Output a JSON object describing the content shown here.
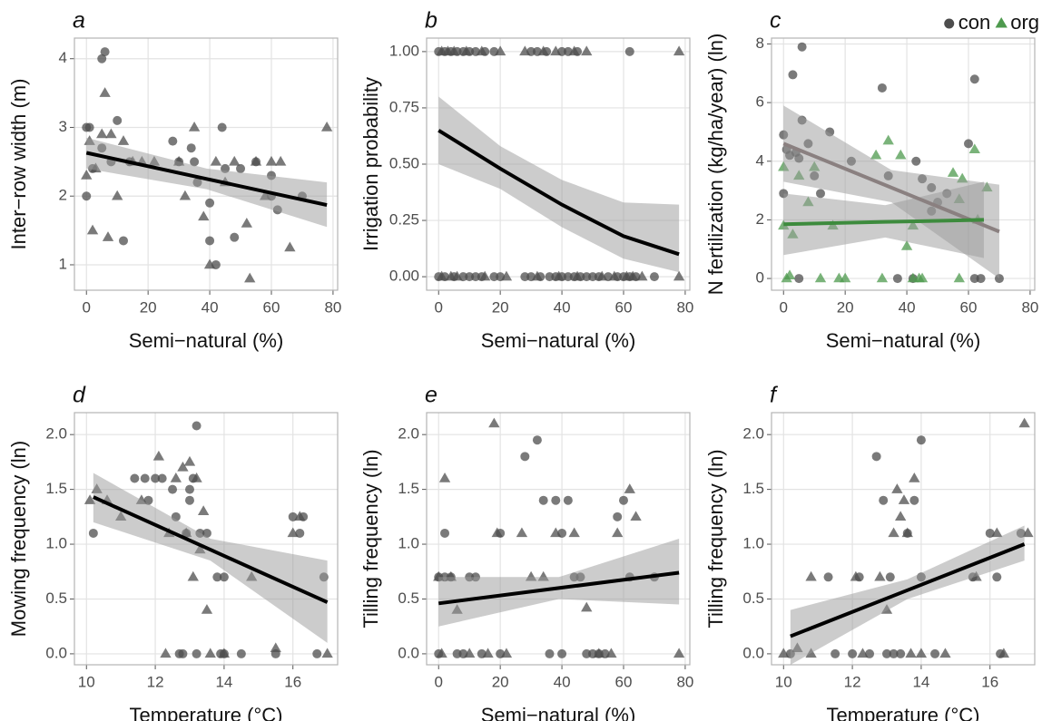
{
  "chart_data": [
    {
      "type": "scatter",
      "label": "a",
      "xlabel": "Semi−natural (%)",
      "ylabel": "Inter−row width (m)",
      "xlim": [
        -3.9,
        81.5
      ],
      "ylim": [
        0.63,
        4.3
      ],
      "xticks": [
        0,
        20,
        40,
        60,
        80
      ],
      "yticks": [
        1,
        2,
        3,
        4
      ],
      "grid": true,
      "series": [
        {
          "marker": "circle",
          "color": "#4d4d4d",
          "x": [
            0,
            1,
            2,
            5,
            6,
            5,
            8,
            10,
            12,
            14,
            28,
            30,
            34,
            35,
            36,
            40,
            40,
            42,
            44,
            45,
            48,
            50,
            55,
            60,
            62,
            70,
            60,
            0
          ],
          "y": [
            3,
            3,
            2.4,
            4,
            4.1,
            2.7,
            2.5,
            3.1,
            1.35,
            2.5,
            2.8,
            2.5,
            2.7,
            2.5,
            2.2,
            1.9,
            1.35,
            1.0,
            3,
            2.4,
            1.4,
            2.4,
            2.5,
            2.0,
            1.8,
            2.0,
            2.3,
            2.0
          ]
        },
        {
          "marker": "triangle",
          "color": "#4d4d4d",
          "x": [
            0,
            1,
            2,
            3,
            5,
            6,
            7,
            8,
            10,
            12,
            15,
            18,
            22,
            30,
            32,
            35,
            38,
            40,
            42,
            45,
            48,
            52,
            53,
            55,
            58,
            60,
            63,
            66,
            78
          ],
          "y": [
            2.3,
            2.8,
            1.5,
            2.4,
            2.9,
            3.5,
            1.4,
            2.9,
            2.0,
            2.8,
            2.5,
            2.5,
            2.5,
            2.5,
            2.0,
            3.0,
            1.7,
            1.0,
            2.5,
            2.2,
            2.5,
            1.6,
            0.8,
            2.5,
            2.0,
            2.5,
            2.5,
            1.25,
            3.0
          ]
        }
      ],
      "fits": [
        {
          "color": "#000000",
          "x": [
            0,
            39,
            78
          ],
          "y": [
            2.63,
            2.25,
            1.87
          ],
          "lower": [
            2.4,
            2.1,
            1.55
          ],
          "upper": [
            2.85,
            2.4,
            2.2
          ]
        }
      ]
    },
    {
      "type": "scatter",
      "label": "b",
      "xlabel": "Semi−natural (%)",
      "ylabel": "Irrigation probability",
      "xlim": [
        -3.9,
        81.5
      ],
      "ylim": [
        -0.06,
        1.06
      ],
      "xticks": [
        0,
        20,
        40,
        60,
        80
      ],
      "yticks": [
        {
          "value": 0,
          "label": "0.00"
        },
        {
          "value": 0.25,
          "label": "0.25"
        },
        {
          "value": 0.5,
          "label": "0.50"
        },
        {
          "value": 0.75,
          "label": "0.75"
        },
        {
          "value": 1,
          "label": "1.00"
        }
      ],
      "grid": true,
      "series": [
        {
          "marker": "circle",
          "color": "#4d4d4d",
          "x": [
            0,
            2,
            4,
            6,
            8,
            10,
            12,
            15,
            18,
            30,
            32,
            35,
            40,
            42,
            45,
            62,
            0,
            2,
            5,
            8,
            10,
            12,
            14,
            18,
            20,
            28,
            30,
            33,
            36,
            38,
            40,
            42,
            44,
            46,
            48,
            50,
            52,
            55,
            58,
            60,
            62,
            64,
            70
          ],
          "y": [
            1,
            1,
            1,
            1,
            1,
            1,
            1,
            1,
            1,
            1,
            1,
            1,
            1,
            1,
            1,
            1,
            0,
            0,
            0,
            0,
            0,
            0,
            0,
            0,
            0,
            0,
            0,
            0,
            0,
            0,
            0,
            0,
            0,
            0,
            0,
            0,
            0,
            0,
            0,
            0,
            0,
            0,
            0
          ]
        },
        {
          "marker": "triangle",
          "color": "#4d4d4d",
          "x": [
            1,
            3,
            5,
            9,
            14,
            20,
            28,
            34,
            38,
            44,
            48,
            78,
            1,
            4,
            6,
            15,
            22,
            32,
            39,
            45,
            53,
            57,
            61,
            63,
            66,
            78
          ],
          "y": [
            1,
            1,
            1,
            1,
            1,
            1,
            1,
            1,
            1,
            1,
            1,
            1,
            0,
            0,
            0,
            0,
            0,
            0,
            0,
            0,
            0,
            0,
            0,
            0,
            0,
            0
          ]
        }
      ],
      "fits": [
        {
          "color": "#000000",
          "x": [
            0,
            20,
            40,
            60,
            78
          ],
          "y": [
            0.65,
            0.48,
            0.32,
            0.18,
            0.1
          ],
          "lower": [
            0.5,
            0.39,
            0.22,
            0.08,
            0.02
          ],
          "upper": [
            0.8,
            0.58,
            0.43,
            0.33,
            0.32
          ]
        }
      ]
    },
    {
      "type": "scatter",
      "label": "c",
      "xlabel": "Semi−natural (%)",
      "ylabel": "N fertilization (kg/ha/year) (ln)",
      "xlim": [
        -3.9,
        81.5
      ],
      "ylim": [
        -0.4,
        8.2
      ],
      "xticks": [
        0,
        20,
        40,
        60,
        80
      ],
      "yticks": [
        0,
        2,
        4,
        6,
        8
      ],
      "grid": true,
      "legend": "top-right",
      "series": [
        {
          "name": "con",
          "marker": "circle",
          "color": "#4d4d4d",
          "x": [
            0,
            0,
            1,
            2,
            3,
            4,
            5,
            6,
            6,
            8,
            10,
            12,
            15,
            22,
            32,
            34,
            37,
            42,
            43,
            45,
            48,
            50,
            53,
            60,
            62,
            62,
            64,
            70,
            48,
            5
          ],
          "y": [
            4.9,
            2.9,
            4.4,
            4.2,
            6.95,
            4.3,
            4.1,
            7.9,
            5.4,
            4.6,
            3.5,
            2.9,
            5.0,
            4.0,
            6.5,
            3.5,
            0,
            0,
            4.0,
            3.4,
            3.1,
            2.6,
            2.9,
            4.6,
            6.8,
            0,
            0,
            0,
            2.3,
            0
          ]
        },
        {
          "name": "org",
          "marker": "triangle",
          "color": "#4e9a4e",
          "x": [
            0,
            0,
            1,
            2,
            3,
            5,
            8,
            10,
            12,
            16,
            18,
            20,
            30,
            32,
            34,
            38,
            40,
            42,
            42,
            44,
            45,
            55,
            57,
            58,
            62,
            63,
            66,
            57
          ],
          "y": [
            3.8,
            1.8,
            0,
            0.1,
            1.5,
            3.5,
            2.6,
            3.8,
            0,
            1.8,
            0,
            0,
            4.2,
            0,
            4.7,
            4.2,
            1.1,
            0,
            1.8,
            0,
            0,
            3.6,
            0,
            3.4,
            4.4,
            2.0,
            3.1,
            2.7
          ]
        }
      ],
      "fits": [
        {
          "color": "#8a8080",
          "x": [
            0,
            35,
            70
          ],
          "y": [
            4.6,
            3.1,
            1.6
          ],
          "lower": [
            3.3,
            2.6,
            0.0
          ],
          "upper": [
            5.9,
            3.7,
            3.2
          ]
        },
        {
          "color": "#3d8b3d",
          "x": [
            0,
            33,
            65
          ],
          "y": [
            1.85,
            1.93,
            2.0
          ],
          "lower": [
            0.8,
            1.4,
            0.7
          ],
          "upper": [
            2.9,
            2.5,
            3.3
          ]
        }
      ]
    },
    {
      "type": "scatter",
      "label": "d",
      "xlabel": "Temperature (°C)",
      "ylabel": "Mowing frequency (ln)",
      "xlim": [
        9.65,
        17.3
      ],
      "ylim": [
        -0.1,
        2.2
      ],
      "xticks": [
        10,
        12,
        14,
        16
      ],
      "yticks": [
        {
          "value": 0,
          "label": "0.0"
        },
        {
          "value": 0.5,
          "label": "0.5"
        },
        {
          "value": 1,
          "label": "1.0"
        },
        {
          "value": 1.5,
          "label": "1.5"
        },
        {
          "value": 2,
          "label": "2.0"
        }
      ],
      "grid": true,
      "series": [
        {
          "marker": "circle",
          "color": "#4d4d4d",
          "x": [
            10.2,
            11.4,
            11.7,
            11.8,
            12.0,
            12.2,
            12.5,
            12.6,
            12.7,
            12.9,
            13.0,
            13.0,
            13.1,
            13.2,
            13.3,
            13.5,
            13.8,
            14.0,
            13.9,
            14.0,
            14.5,
            15.5,
            16.0,
            16.2,
            16.3,
            16.7,
            16.9,
            12.8,
            13.2
          ],
          "y": [
            1.1,
            1.6,
            1.6,
            1.4,
            1.6,
            1.6,
            1.5,
            1.25,
            0,
            1.1,
            1.4,
            1.5,
            1.6,
            2.08,
            1.1,
            1.1,
            0.7,
            0.7,
            0,
            0,
            0,
            0,
            1.25,
            1.1,
            1.25,
            0,
            0.7,
            0,
            0
          ]
        },
        {
          "marker": "triangle",
          "color": "#4d4d4d",
          "x": [
            10.1,
            10.3,
            10.6,
            11.0,
            11.6,
            12.1,
            12.3,
            12.4,
            12.6,
            12.8,
            12.9,
            13.0,
            13.1,
            13.2,
            13.3,
            13.4,
            13.6,
            14.0,
            14.8,
            15.5,
            16.0,
            16.2,
            17.0,
            13.5
          ],
          "y": [
            1.4,
            1.5,
            1.4,
            1.25,
            1.4,
            1.8,
            0,
            1.1,
            1.6,
            1.7,
            1.1,
            1.75,
            0.7,
            1.6,
            0.95,
            1.3,
            0,
            0,
            0.7,
            0.05,
            1.1,
            1.25,
            0,
            0.4
          ]
        }
      ],
      "fits": [
        {
          "color": "#000000",
          "x": [
            10.2,
            13.6,
            17
          ],
          "y": [
            1.43,
            0.95,
            0.47
          ],
          "lower": [
            1.2,
            0.85,
            0.1
          ],
          "upper": [
            1.65,
            1.05,
            0.85
          ]
        }
      ]
    },
    {
      "type": "scatter",
      "label": "e",
      "xlabel": "Semi−natural (%)",
      "ylabel": "Tilling frequency (ln)",
      "xlim": [
        -3.9,
        81.5
      ],
      "ylim": [
        -0.1,
        2.2
      ],
      "xticks": [
        0,
        20,
        40,
        60,
        80
      ],
      "yticks": [
        {
          "value": 0,
          "label": "0.0"
        },
        {
          "value": 0.5,
          "label": "0.5"
        },
        {
          "value": 1,
          "label": "1.0"
        },
        {
          "value": 1.5,
          "label": "1.5"
        },
        {
          "value": 2,
          "label": "2.0"
        }
      ],
      "grid": true,
      "series": [
        {
          "marker": "circle",
          "color": "#4d4d4d",
          "x": [
            0,
            2,
            2,
            4,
            6,
            8,
            10,
            12,
            14,
            20,
            28,
            32,
            34,
            36,
            38,
            40,
            40,
            42,
            44,
            46,
            48,
            50,
            52,
            54,
            58,
            60,
            62,
            70,
            20,
            0
          ],
          "y": [
            0,
            0.7,
            1.1,
            0.7,
            0,
            0,
            0.7,
            0.7,
            0,
            1.1,
            1.8,
            1.95,
            1.4,
            0,
            1.4,
            0,
            1.1,
            1.4,
            0.7,
            0.7,
            0,
            0,
            0,
            0,
            1.25,
            1.4,
            0.7,
            0.7,
            0,
            0.7
          ]
        },
        {
          "marker": "triangle",
          "color": "#4d4d4d",
          "x": [
            0,
            1,
            2,
            4,
            6,
            10,
            16,
            18,
            19,
            22,
            27,
            30,
            34,
            38,
            44,
            48,
            52,
            56,
            58,
            62,
            64,
            78
          ],
          "y": [
            0.7,
            0,
            1.6,
            0.7,
            0.4,
            0,
            0,
            2.1,
            1.1,
            0,
            1.1,
            0.7,
            0.7,
            1.1,
            1.1,
            0.42,
            0,
            0,
            1.1,
            1.5,
            1.25,
            0
          ]
        }
      ],
      "fits": [
        {
          "color": "#000000",
          "x": [
            0,
            39,
            78
          ],
          "y": [
            0.46,
            0.6,
            0.74
          ],
          "lower": [
            0.25,
            0.5,
            0.45
          ],
          "upper": [
            0.7,
            0.7,
            1.05
          ]
        }
      ]
    },
    {
      "type": "scatter",
      "label": "f",
      "xlabel": "Temperature (°C)",
      "ylabel": "Tilling frequency (ln)",
      "xlim": [
        9.65,
        17.3
      ],
      "ylim": [
        -0.1,
        2.2
      ],
      "xticks": [
        10,
        12,
        14,
        16
      ],
      "yticks": [
        {
          "value": 0,
          "label": "0.0"
        },
        {
          "value": 0.5,
          "label": "0.5"
        },
        {
          "value": 1,
          "label": "1.0"
        },
        {
          "value": 1.5,
          "label": "1.5"
        },
        {
          "value": 2,
          "label": "2.0"
        }
      ],
      "grid": true,
      "series": [
        {
          "marker": "circle",
          "color": "#4d4d4d",
          "x": [
            10.2,
            11.3,
            11.5,
            12.2,
            12.5,
            12.7,
            12.9,
            13.0,
            13.1,
            13.2,
            13.6,
            13.8,
            14.0,
            14.0,
            14.4,
            15.5,
            16.0,
            16.2,
            16.3,
            16.9,
            12.0,
            13.4
          ],
          "y": [
            0,
            0.7,
            0,
            0.7,
            0,
            1.8,
            1.4,
            0,
            0.7,
            0,
            1.1,
            1.4,
            1.95,
            0.7,
            0,
            0.7,
            1.1,
            0.7,
            0,
            1.1,
            0,
            0
          ]
        },
        {
          "marker": "triangle",
          "color": "#4d4d4d",
          "x": [
            10.0,
            10.4,
            10.8,
            10.8,
            12.1,
            12.3,
            12.8,
            13.0,
            13.2,
            13.3,
            13.4,
            13.5,
            13.6,
            13.7,
            13.8,
            14.0,
            14.7,
            15.6,
            16.2,
            16.4,
            17.0,
            17.1
          ],
          "y": [
            0,
            0.05,
            0.7,
            0,
            0.7,
            0,
            0.7,
            0.4,
            1.1,
            1.5,
            1.25,
            1.4,
            1.1,
            0,
            1.6,
            0,
            0,
            0.7,
            1.1,
            0,
            2.1,
            1.1
          ]
        }
      ],
      "fits": [
        {
          "color": "#000000",
          "x": [
            10.2,
            13.6,
            17
          ],
          "y": [
            0.16,
            0.58,
            1.0
          ],
          "lower": [
            -0.1,
            0.5,
            0.85
          ],
          "upper": [
            0.4,
            0.68,
            1.17
          ]
        }
      ]
    }
  ]
}
